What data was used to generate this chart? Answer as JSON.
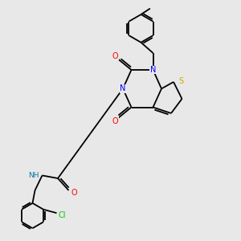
{
  "bg_color": "#e8e8e8",
  "bond_color": "#000000",
  "atom_colors": {
    "N": "#0000ff",
    "O": "#ff0000",
    "S": "#ccaa00",
    "Cl": "#00cc00",
    "NH": "#0077aa",
    "C": "#000000"
  },
  "figsize": [
    3.0,
    3.0
  ],
  "dpi": 100
}
